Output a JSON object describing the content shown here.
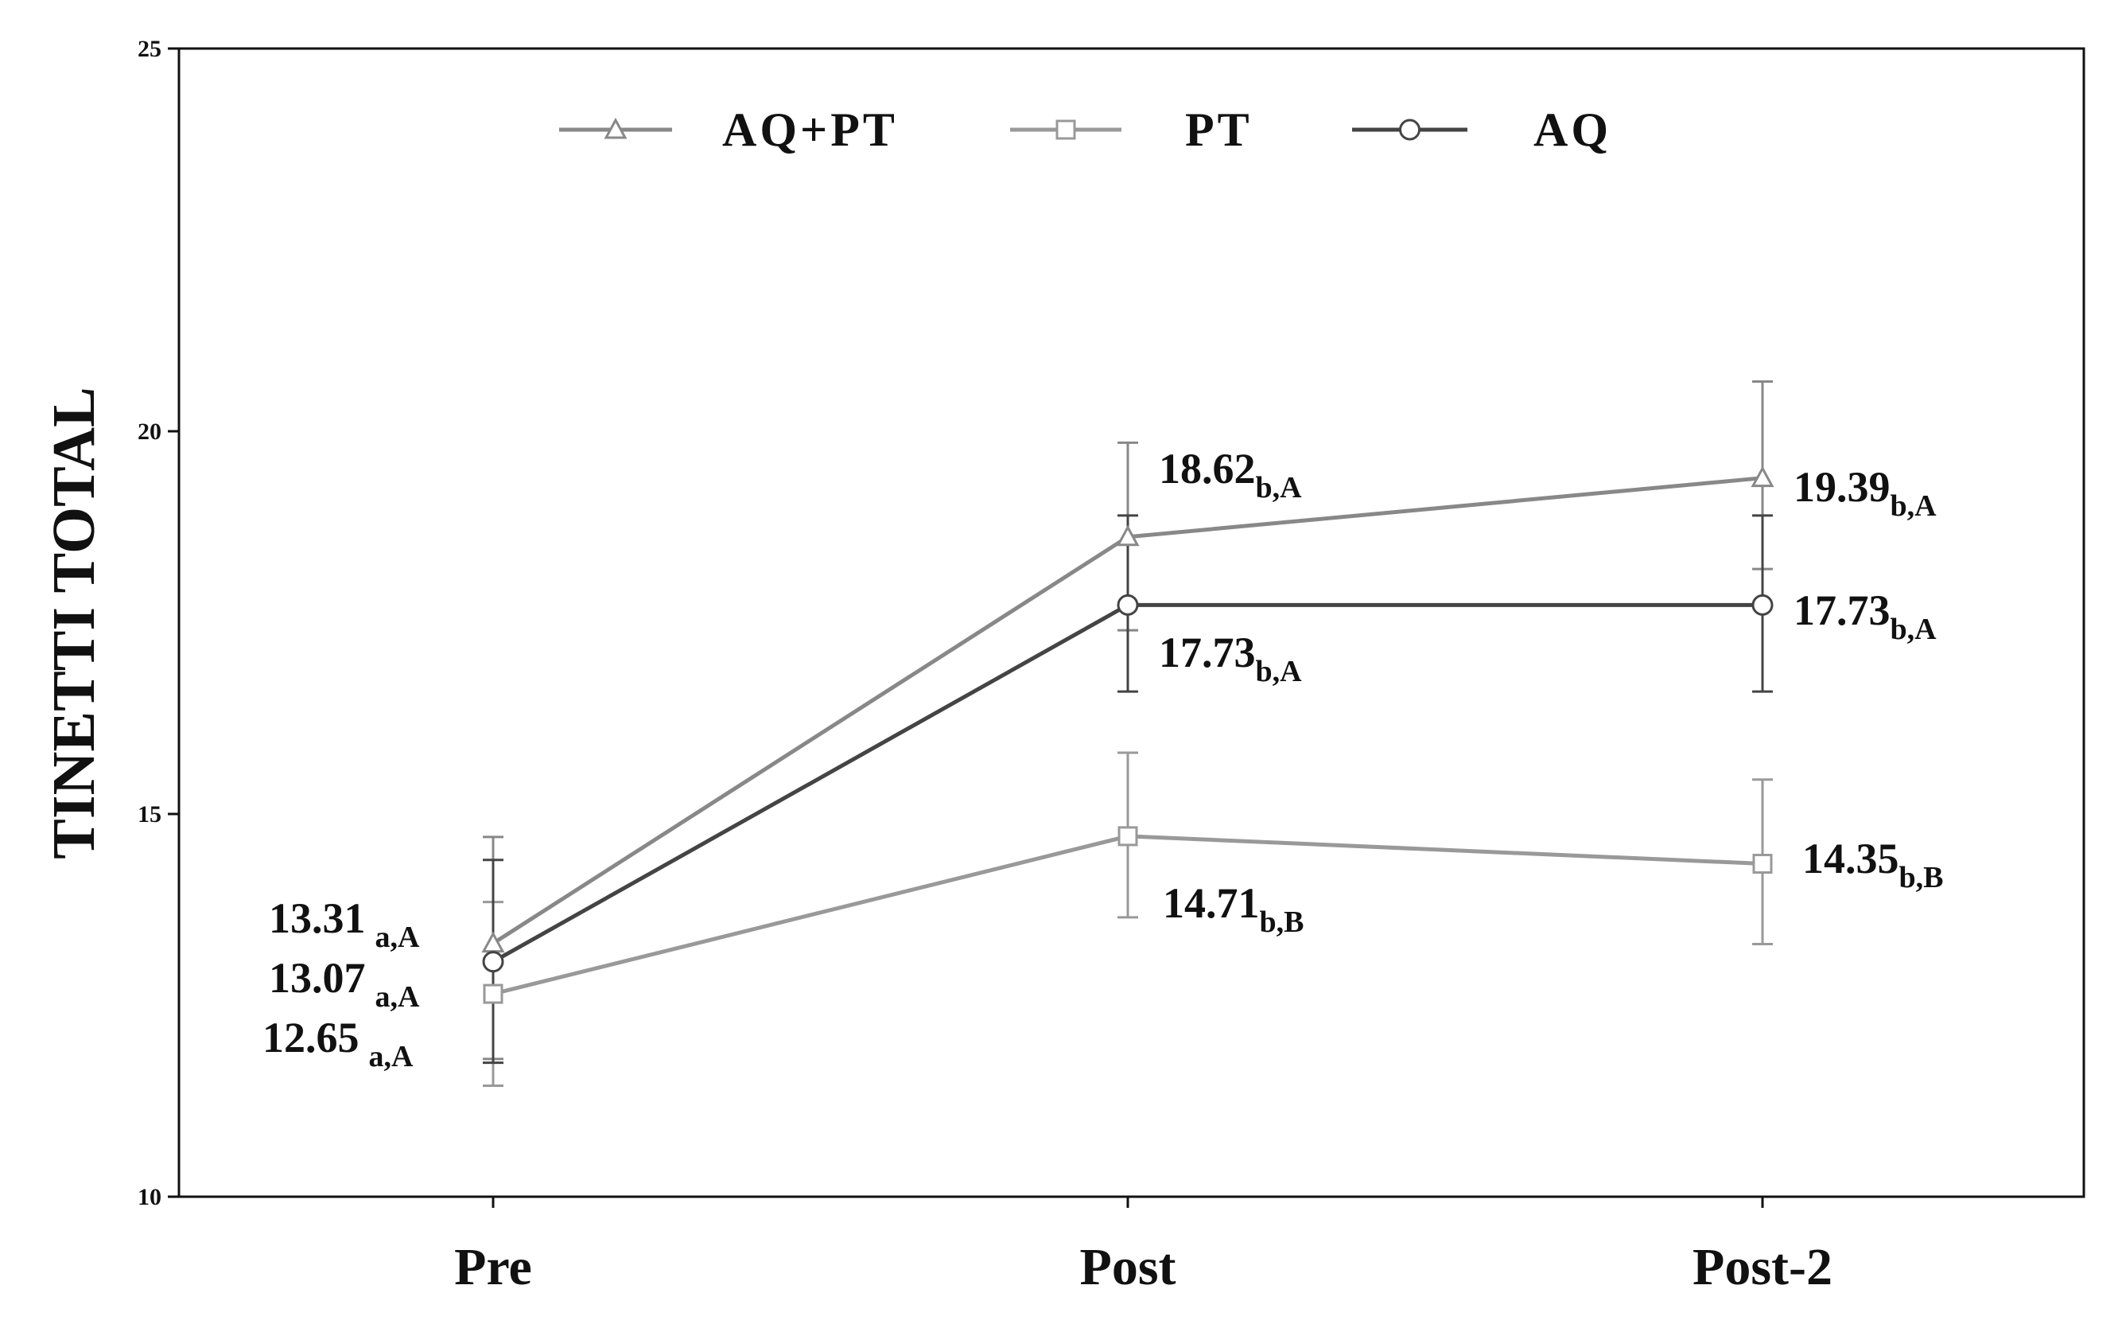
{
  "colors": {
    "axis": "#111111",
    "text": "#111111"
  },
  "chart_data": {
    "type": "line",
    "title": "",
    "xlabel": "",
    "ylabel": "TINETTI TOTAL",
    "ylim": [
      10,
      25
    ],
    "yticks": [
      10,
      15,
      20,
      25
    ],
    "categories": [
      "Pre",
      "Post",
      "Post-2"
    ],
    "grid": false,
    "legend_position": "top",
    "series": [
      {
        "name": "AQ+PT",
        "marker": "triangle",
        "color": "#888888",
        "values": [
          13.31,
          18.62,
          19.39
        ],
        "error_low": [
          11.8,
          17.4,
          18.2
        ],
        "error_high": [
          14.7,
          19.85,
          20.65
        ],
        "labels": [
          {
            "value": "13.31",
            "sub": "a,A"
          },
          {
            "value": "18.62",
            "sub": "b,A"
          },
          {
            "value": "19.39",
            "sub": "b,A"
          }
        ]
      },
      {
        "name": "PT",
        "marker": "square",
        "color": "#999999",
        "values": [
          12.65,
          14.71,
          14.35
        ],
        "error_low": [
          11.45,
          13.65,
          13.3
        ],
        "error_high": [
          13.85,
          15.8,
          15.45
        ],
        "labels": [
          {
            "value": "12.65",
            "sub": "a,A"
          },
          {
            "value": "14.71",
            "sub": "b,B"
          },
          {
            "value": "14.35",
            "sub": "b,B"
          }
        ]
      },
      {
        "name": "AQ",
        "marker": "circle",
        "color": "#444444",
        "values": [
          13.07,
          17.73,
          17.73
        ],
        "error_low": [
          11.75,
          16.6,
          16.6
        ],
        "error_high": [
          14.4,
          18.9,
          18.9
        ],
        "labels": [
          {
            "value": "13.07",
            "sub": "a,A"
          },
          {
            "value": "17.73",
            "sub": "b,A"
          },
          {
            "value": "17.73",
            "sub": "b,A"
          }
        ]
      }
    ]
  }
}
